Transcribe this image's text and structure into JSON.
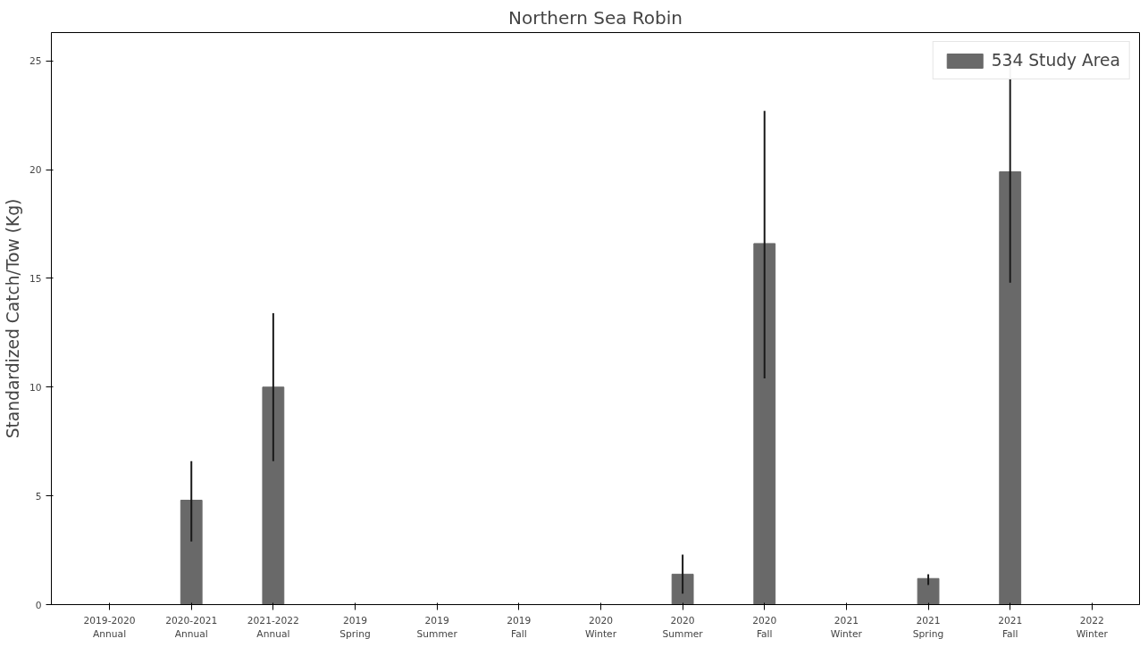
{
  "chart_data": {
    "type": "bar",
    "title": "Northern Sea Robin",
    "ylabel": "Standardized Catch/Tow (Kg)",
    "categories": [
      "2019-2020\nAnnual",
      "2020-2021\nAnnual",
      "2021-2022\nAnnual",
      "2019\nSpring",
      "2019\nSummer",
      "2019\nFall",
      "2020\nWinter",
      "2020\nSummer",
      "2020\nFall",
      "2021\nWinter",
      "2021\nSpring",
      "2021\nFall",
      "2022\nWinter"
    ],
    "series": [
      {
        "name": "534 Study Area",
        "color": "#696969",
        "values": [
          null,
          4.8,
          10.0,
          null,
          null,
          null,
          null,
          1.4,
          16.6,
          null,
          1.2,
          19.9,
          null
        ],
        "errors": [
          null,
          [
            2.9,
            6.6
          ],
          [
            6.6,
            13.4
          ],
          null,
          null,
          null,
          null,
          [
            0.5,
            2.3
          ],
          [
            10.4,
            22.7
          ],
          null,
          [
            0.9,
            1.4
          ],
          [
            14.8,
            25.0
          ],
          null
        ]
      }
    ],
    "ylim": [
      0,
      26.3
    ],
    "yticks": [
      0,
      5,
      10,
      15,
      20,
      25
    ],
    "grid": false,
    "legend": "top right"
  }
}
